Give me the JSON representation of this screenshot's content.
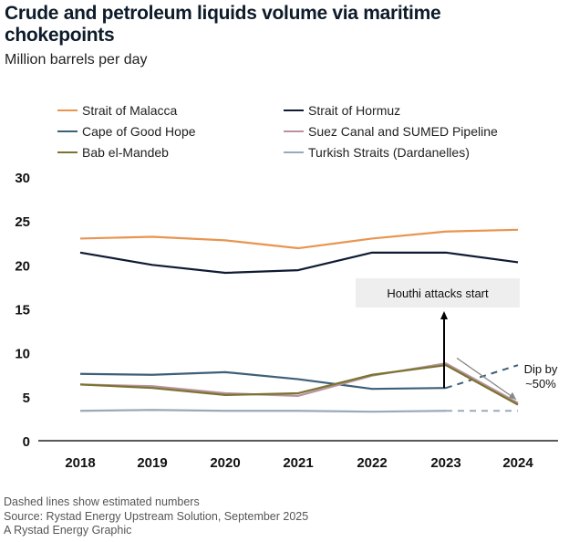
{
  "title": "Crude and petroleum liquids volume via maritime chokepoints",
  "subtitle": "Million barrels per day",
  "footer": {
    "note": "Dashed lines show estimated numbers",
    "source": "Source: Rystad Energy Upstream Solution, September 2025",
    "credit": "A Rystad Energy Graphic"
  },
  "annotations": {
    "houthi": "Houthi attacks start",
    "dip_line1": "Dip by",
    "dip_line2": "~50%"
  },
  "chart_data": {
    "type": "line",
    "title": "Crude and petroleum liquids volume via maritime chokepoints",
    "subtitle": "Million barrels per day",
    "ylabel": "",
    "xlabel": "",
    "categories": [
      "2018",
      "2019",
      "2020",
      "2021",
      "2022",
      "2023",
      "2024"
    ],
    "yticks": [
      "0",
      "5",
      "10",
      "15",
      "20",
      "25",
      "30"
    ],
    "ylim": [
      0,
      30
    ],
    "grid": false,
    "legend_position": "top",
    "estimated_from": "2023",
    "series": [
      {
        "name": "Strait of Malacca",
        "color": "#e8954f",
        "values": [
          23.0,
          23.2,
          22.8,
          21.9,
          23.0,
          23.8,
          24.0
        ],
        "dashed_last": false
      },
      {
        "name": "Strait of Hormuz",
        "color": "#0f1b33",
        "values": [
          21.4,
          20.0,
          19.1,
          19.4,
          21.4,
          21.4,
          20.3
        ],
        "dashed_last": false
      },
      {
        "name": "Cape of Good Hope",
        "color": "#3e5f78",
        "values": [
          7.6,
          7.5,
          7.8,
          7.0,
          5.9,
          6.0,
          8.6
        ],
        "dashed_last": true
      },
      {
        "name": "Suez Canal and SUMED Pipeline",
        "color": "#b8929d",
        "values": [
          6.4,
          6.2,
          5.4,
          5.1,
          7.4,
          8.8,
          4.3
        ],
        "dashed_last": false
      },
      {
        "name": "Bab el-Mandeb",
        "color": "#7a7430",
        "values": [
          6.4,
          6.0,
          5.2,
          5.4,
          7.5,
          8.6,
          4.1
        ],
        "dashed_last": false
      },
      {
        "name": "Turkish Straits (Dardanelles)",
        "color": "#9aaab8",
        "values": [
          3.4,
          3.5,
          3.4,
          3.4,
          3.3,
          3.4,
          3.4
        ],
        "dashed_last": true
      }
    ]
  }
}
